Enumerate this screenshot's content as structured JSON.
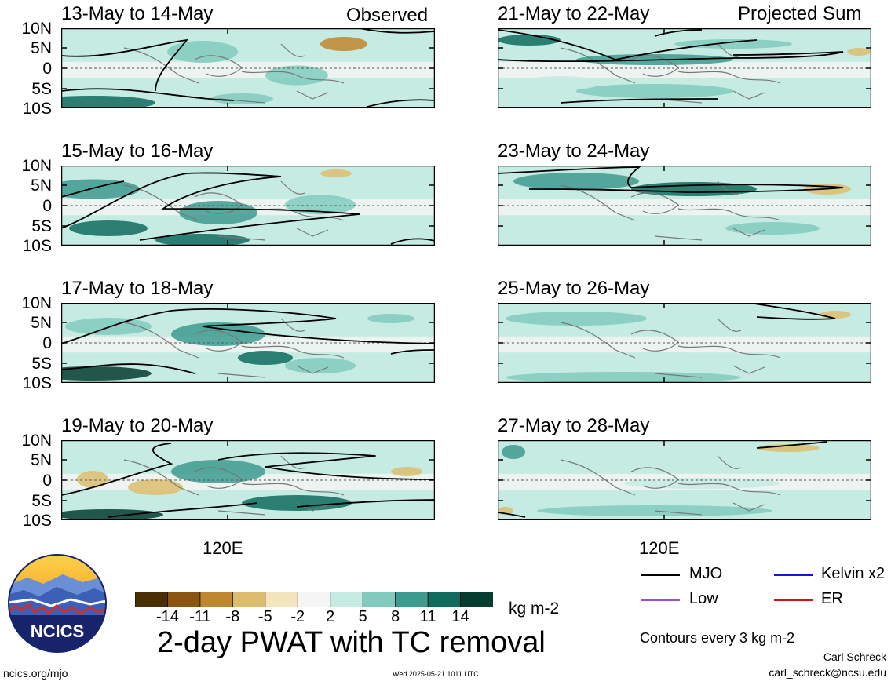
{
  "labels": {
    "observed": "Observed",
    "projected": "Projected Sum"
  },
  "panels": {
    "left": [
      {
        "title": "13-May to 14-May"
      },
      {
        "title": "15-May to 16-May"
      },
      {
        "title": "17-May to 18-May"
      },
      {
        "title": "19-May to 20-May"
      }
    ],
    "right": [
      {
        "title": "21-May to 22-May"
      },
      {
        "title": "23-May to 24-May"
      },
      {
        "title": "25-May to 26-May"
      },
      {
        "title": "27-May to 28-May"
      }
    ]
  },
  "y_ticks": [
    "10N",
    "5N",
    "0",
    "5S",
    "10S"
  ],
  "x_tick": "120E",
  "colorbar": {
    "ticks": [
      "-14",
      "-11",
      "-8",
      "-5",
      "-2",
      "2",
      "5",
      "8",
      "11",
      "14"
    ],
    "colors": [
      "#4a2e06",
      "#8a5510",
      "#bf8730",
      "#dcbd6e",
      "#f3e5be",
      "#f5f5f5",
      "#c6ebe2",
      "#80cbbd",
      "#3d9a8f",
      "#0f6b5e",
      "#043c30"
    ],
    "units": "kg m-2"
  },
  "legend": {
    "mjo": "MJO",
    "kelvin": "Kelvin x2",
    "low": "Low",
    "er": "ER",
    "colors": {
      "mjo": "#000000",
      "kelvin": "#1414d2",
      "low": "#9b4fd6",
      "er": "#d41414"
    }
  },
  "footer": {
    "title": "2-day PWAT with TC removal",
    "contours": "Contours every 3 kg m-2",
    "author": "Carl Schreck",
    "email": "carl_schreck@ncsu.edu",
    "site": "ncics.org/mjo",
    "timestamp": "Wed 2025-05-21 1011 UTC",
    "logo_text": "NCICS"
  }
}
